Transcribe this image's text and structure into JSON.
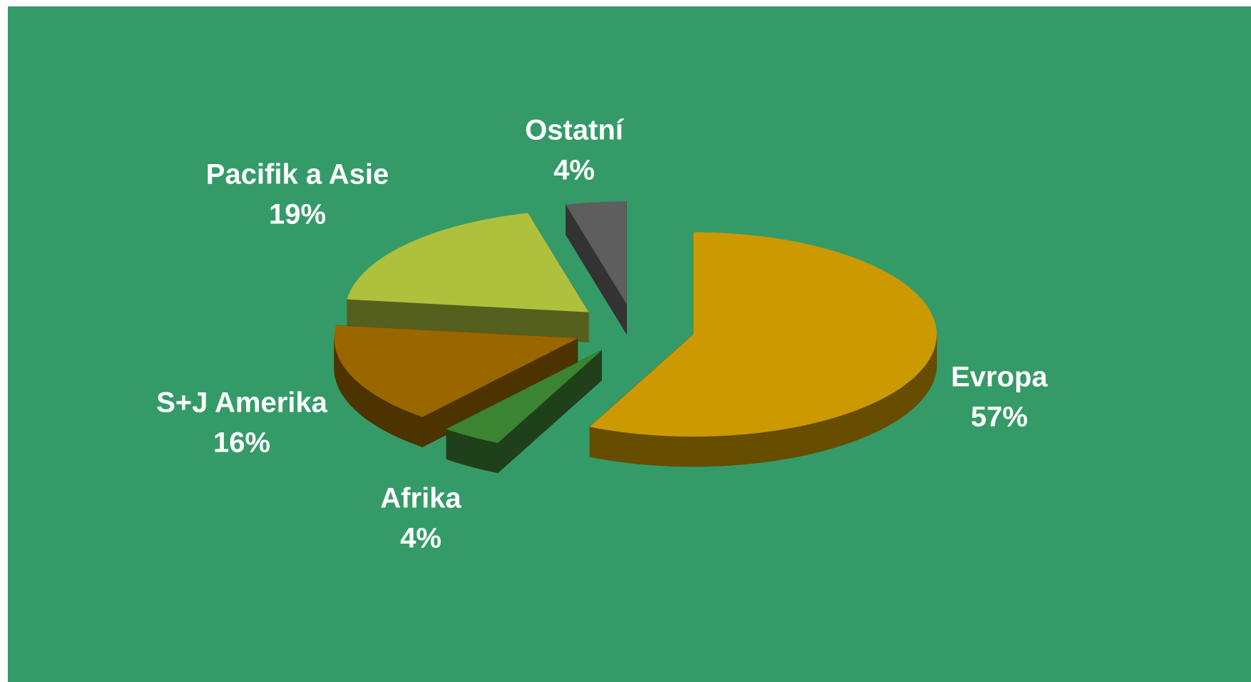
{
  "chart_data": {
    "type": "pie",
    "categories": [
      "Evropa",
      "Afrika",
      "S+J Amerika",
      "Pacifik a Asie",
      "Ostatní"
    ],
    "values": [
      57,
      4,
      16,
      19,
      4
    ],
    "value_labels": [
      "57%",
      "4%",
      "16%",
      "19%",
      "4%"
    ],
    "colors": [
      "#cc9900",
      "#3a8432",
      "#996600",
      "#afc03c",
      "#5e5e5e"
    ],
    "side_colors": [
      "#664d00",
      "#1f401a",
      "#4d3300",
      "#56601e",
      "#333333"
    ],
    "background": "#349b68"
  }
}
